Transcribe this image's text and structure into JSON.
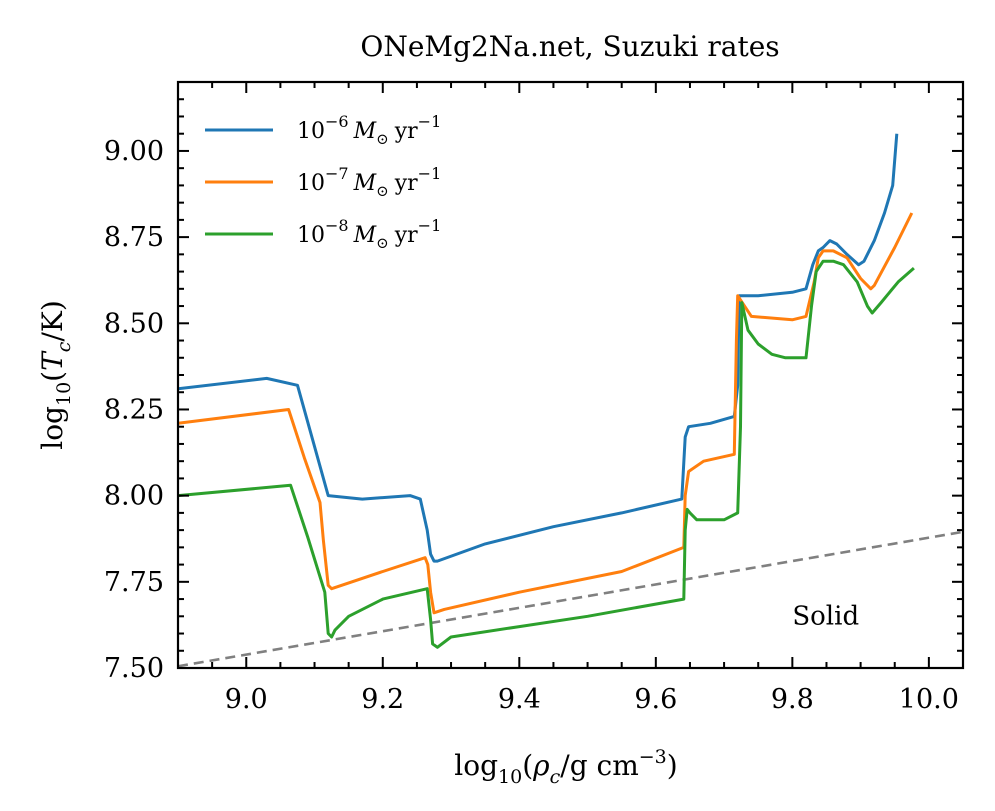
{
  "chart_data": {
    "type": "line",
    "title": "ONeMg2Na.net, Suzuki rates",
    "xlabel": "log10(ρc/g cm^-3)",
    "ylabel": "log10(Tc/K)",
    "xlim": [
      8.9,
      10.05
    ],
    "ylim": [
      7.5,
      9.2
    ],
    "xticks": [
      9.0,
      9.2,
      9.4,
      9.6,
      9.8,
      10.0
    ],
    "xtick_labels": [
      "9.0",
      "9.2",
      "9.4",
      "9.6",
      "9.8",
      "10.0"
    ],
    "yticks": [
      7.5,
      7.75,
      8.0,
      8.25,
      8.5,
      8.75,
      9.0
    ],
    "ytick_labels": [
      "7.50",
      "7.75",
      "8.00",
      "8.25",
      "8.50",
      "8.75",
      "9.00"
    ],
    "grid": false,
    "legend_position": "top-left",
    "series": [
      {
        "name": "10^-6 M☉ yr^-1",
        "legend_base": "10",
        "legend_exp": "−6",
        "legend_unit": "M",
        "legend_sub": "⊙",
        "legend_yr": "yr",
        "legend_yr_exp": "−1",
        "color": "#1f77b4",
        "x": [
          8.9,
          9.03,
          9.075,
          9.12,
          9.17,
          9.24,
          9.255,
          9.265,
          9.27,
          9.275,
          9.28,
          9.35,
          9.45,
          9.55,
          9.638,
          9.643,
          9.648,
          9.68,
          9.715,
          9.72,
          9.722,
          9.727,
          9.75,
          9.8,
          9.82,
          9.83,
          9.838,
          9.845,
          9.855,
          9.865,
          9.88,
          9.897,
          9.905,
          9.92,
          9.935,
          9.947,
          9.953
        ],
        "y": [
          8.31,
          8.34,
          8.32,
          8.0,
          7.99,
          8.0,
          7.99,
          7.9,
          7.83,
          7.81,
          7.81,
          7.86,
          7.91,
          7.95,
          7.99,
          8.17,
          8.2,
          8.21,
          8.23,
          8.32,
          8.58,
          8.58,
          8.58,
          8.59,
          8.6,
          8.67,
          8.71,
          8.72,
          8.74,
          8.73,
          8.7,
          8.67,
          8.68,
          8.74,
          8.82,
          8.9,
          9.05
        ]
      },
      {
        "name": "10^-7 M☉ yr^-1",
        "legend_base": "10",
        "legend_exp": "−7",
        "legend_unit": "M",
        "legend_sub": "⊙",
        "legend_yr": "yr",
        "legend_yr_exp": "−1",
        "color": "#ff7f0e",
        "x": [
          8.9,
          9.062,
          9.085,
          9.108,
          9.113,
          9.12,
          9.125,
          9.2,
          9.262,
          9.266,
          9.27,
          9.275,
          9.29,
          9.4,
          9.55,
          9.641,
          9.643,
          9.648,
          9.67,
          9.715,
          9.718,
          9.72,
          9.74,
          9.8,
          9.82,
          9.832,
          9.838,
          9.845,
          9.86,
          9.88,
          9.9,
          9.915,
          9.92,
          9.95,
          9.975
        ],
        "y": [
          8.21,
          8.25,
          8.11,
          7.98,
          7.87,
          7.74,
          7.73,
          7.78,
          7.82,
          7.8,
          7.72,
          7.66,
          7.67,
          7.72,
          7.78,
          7.85,
          8.0,
          8.07,
          8.1,
          8.12,
          8.45,
          8.58,
          8.52,
          8.51,
          8.52,
          8.62,
          8.69,
          8.71,
          8.71,
          8.69,
          8.63,
          8.6,
          8.61,
          8.72,
          8.82
        ]
      },
      {
        "name": "10^-8 M☉ yr^-1",
        "legend_base": "10",
        "legend_exp": "−8",
        "legend_unit": "M",
        "legend_sub": "⊙",
        "legend_yr": "yr",
        "legend_yr_exp": "−1",
        "color": "#2ca02c",
        "x": [
          8.9,
          9.065,
          9.09,
          9.115,
          9.12,
          9.125,
          9.13,
          9.15,
          9.2,
          9.265,
          9.27,
          9.273,
          9.28,
          9.3,
          9.4,
          9.5,
          9.641,
          9.643,
          9.646,
          9.65,
          9.66,
          9.7,
          9.72,
          9.724,
          9.726,
          9.735,
          9.75,
          9.77,
          9.79,
          9.82,
          9.828,
          9.835,
          9.845,
          9.86,
          9.875,
          9.895,
          9.91,
          9.917,
          9.93,
          9.955,
          9.978
        ],
        "y": [
          8.0,
          8.03,
          7.88,
          7.72,
          7.6,
          7.59,
          7.61,
          7.65,
          7.7,
          7.73,
          7.64,
          7.57,
          7.56,
          7.59,
          7.62,
          7.65,
          7.7,
          7.9,
          7.96,
          7.95,
          7.93,
          7.93,
          7.95,
          8.2,
          8.56,
          8.48,
          8.44,
          8.41,
          8.4,
          8.4,
          8.55,
          8.65,
          8.68,
          8.68,
          8.67,
          8.62,
          8.55,
          8.53,
          8.56,
          8.62,
          8.66
        ]
      }
    ],
    "reference_line": {
      "color": "#808080",
      "style": "dashed",
      "x": [
        8.9,
        10.05
      ],
      "y": [
        7.505,
        7.895
      ]
    },
    "annotation": {
      "text": "Solid",
      "x": 9.8,
      "y": 7.655
    }
  }
}
